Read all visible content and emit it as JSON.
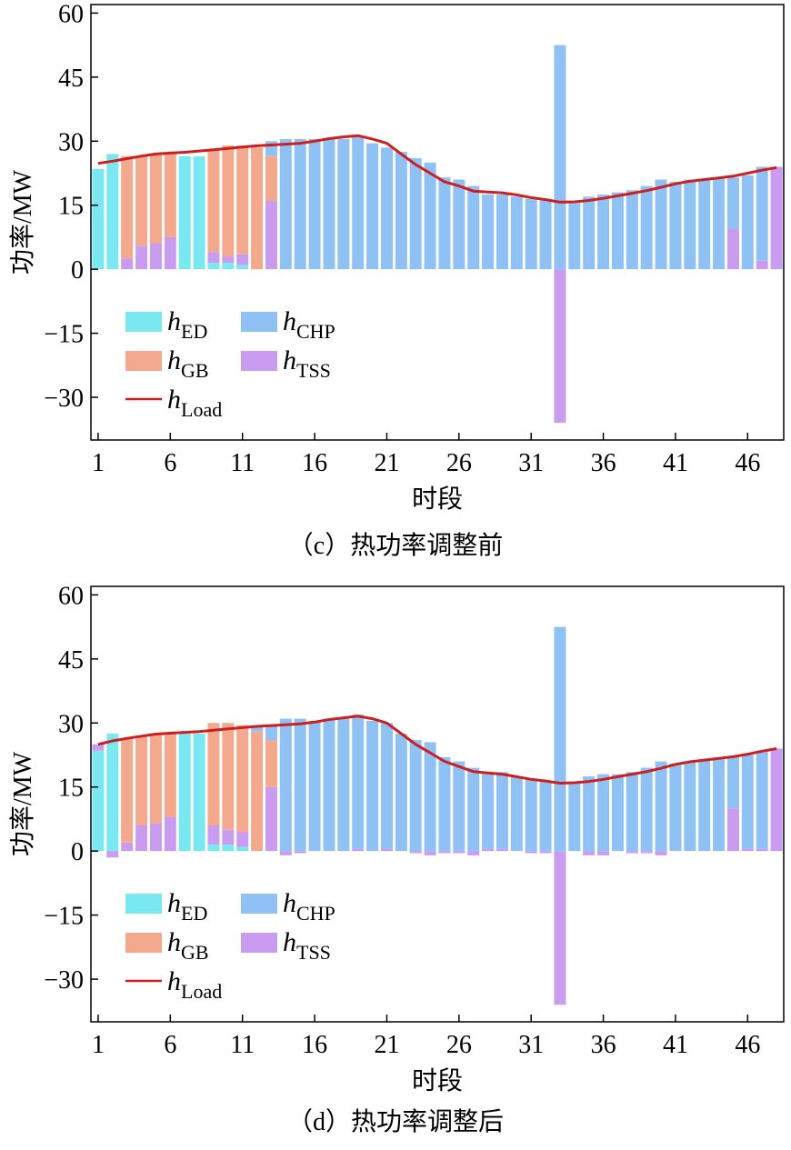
{
  "chart_data": [
    {
      "type": "bar",
      "caption": "（c）热功率调整前",
      "xlabel": "时段",
      "ylabel": "功率/MW",
      "x_ticks": [
        1,
        6,
        11,
        16,
        21,
        26,
        31,
        36,
        41,
        46
      ],
      "y_ticks": [
        60,
        45,
        30,
        15,
        0,
        -15,
        -30
      ],
      "ylim": [
        -40,
        62
      ],
      "xlim": [
        0.5,
        48.5
      ],
      "stacked": true,
      "legend": {
        "placement": "lower-left",
        "columns": 2
      },
      "colors": {
        "hED": "#7ae8f0",
        "hGB": "#f2a98e",
        "hCHP": "#8fc1f5",
        "hTSS": "#c99cf0",
        "hLoad": "#cc1f1f"
      },
      "legend_labels": {
        "hED": {
          "main": "h",
          "sub": "ED"
        },
        "hGB": {
          "main": "h",
          "sub": "GB"
        },
        "hCHP": {
          "main": "h",
          "sub": "CHP"
        },
        "hTSS": {
          "main": "h",
          "sub": "TSS"
        },
        "hLoad": {
          "main": "h",
          "sub": "Load"
        }
      },
      "series": [
        {
          "key": "hED",
          "values": [
            23.5,
            27,
            0,
            0,
            0,
            0,
            26.5,
            26.5,
            1.5,
            1.5,
            1,
            0,
            0,
            0,
            0,
            0,
            0,
            0,
            0,
            0,
            0,
            0,
            0,
            0,
            0,
            0,
            0,
            0,
            0,
            0,
            0,
            0,
            0,
            0,
            0,
            0,
            0,
            0,
            0,
            0,
            0,
            0,
            0,
            0,
            0,
            0,
            0,
            0
          ]
        },
        {
          "key": "hTSS",
          "values": [
            0,
            0,
            2.5,
            5.5,
            6,
            7.5,
            0,
            0,
            2.5,
            1.5,
            2.5,
            0,
            16,
            0,
            0,
            0,
            0,
            0,
            0,
            0,
            0,
            0,
            0,
            0,
            0,
            0,
            0,
            0,
            0,
            0,
            0,
            0,
            -36,
            0,
            0,
            0,
            0,
            0,
            0,
            0,
            0,
            0,
            0,
            0,
            9.5,
            0,
            2,
            24
          ]
        },
        {
          "key": "hGB",
          "values": [
            0,
            0,
            24,
            21,
            21,
            19.5,
            0,
            0,
            24,
            26,
            25.5,
            28.5,
            10.5,
            0,
            0,
            0,
            0,
            0,
            0,
            0,
            0,
            0,
            0,
            0,
            0,
            0,
            0,
            0,
            0,
            0,
            0,
            0,
            0,
            0,
            0,
            0,
            0,
            0,
            0,
            0,
            0,
            0,
            0,
            0,
            0,
            0,
            0,
            0
          ]
        },
        {
          "key": "hCHP",
          "values": [
            0,
            0,
            0,
            0,
            0,
            0,
            0,
            0,
            0,
            0,
            0,
            0,
            3.5,
            30.5,
            30.5,
            30.5,
            30.5,
            30.5,
            31,
            29.5,
            28.5,
            27.5,
            26,
            25,
            21.5,
            21,
            19.5,
            17.5,
            17.5,
            17,
            16.5,
            16.5,
            52.5,
            15.5,
            17,
            17.5,
            18,
            18.5,
            19.5,
            21,
            20.5,
            21,
            21,
            21.5,
            12,
            22,
            22,
            0
          ]
        }
      ],
      "load": [
        24.8,
        25.3,
        25.9,
        26.5,
        27,
        27.2,
        27.4,
        27.7,
        28,
        28.3,
        28.6,
        28.9,
        29.1,
        29.3,
        29.5,
        30,
        30.6,
        31,
        31.3,
        30.5,
        29.5,
        27,
        24.5,
        22.5,
        20.5,
        19.5,
        18.3,
        18.1,
        17.9,
        17.4,
        16.8,
        16.3,
        15.7,
        15.8,
        16.1,
        16.6,
        17.2,
        17.8,
        18.4,
        19.2,
        20,
        20.6,
        21,
        21.4,
        21.8,
        22.5,
        23.2,
        23.8
      ]
    },
    {
      "type": "bar",
      "caption": "（d）热功率调整后",
      "xlabel": "时段",
      "ylabel": "功率/MW",
      "x_ticks": [
        1,
        6,
        11,
        16,
        21,
        26,
        31,
        36,
        41,
        46
      ],
      "y_ticks": [
        60,
        45,
        30,
        15,
        0,
        -15,
        -30
      ],
      "ylim": [
        -40,
        62
      ],
      "xlim": [
        0.5,
        48.5
      ],
      "stacked": true,
      "legend": {
        "placement": "lower-left",
        "columns": 2
      },
      "colors": {
        "hED": "#7ae8f0",
        "hGB": "#f2a98e",
        "hCHP": "#8fc1f5",
        "hTSS": "#c99cf0",
        "hLoad": "#cc1f1f"
      },
      "legend_labels": {
        "hED": {
          "main": "h",
          "sub": "ED"
        },
        "hGB": {
          "main": "h",
          "sub": "GB"
        },
        "hCHP": {
          "main": "h",
          "sub": "CHP"
        },
        "hTSS": {
          "main": "h",
          "sub": "TSS"
        },
        "hLoad": {
          "main": "h",
          "sub": "Load"
        }
      },
      "series": [
        {
          "key": "hED",
          "values": [
            23.5,
            27.5,
            0,
            0,
            0,
            0,
            27.5,
            27.5,
            1.5,
            1.5,
            1,
            0,
            0,
            0,
            0,
            0,
            0,
            0,
            0,
            0,
            0,
            0,
            0,
            0,
            0,
            0,
            0,
            0,
            0,
            0,
            0,
            0,
            0,
            0,
            0,
            0,
            0,
            0,
            0,
            0,
            0,
            0,
            0,
            0,
            0,
            0,
            0,
            0
          ]
        },
        {
          "key": "hTSS",
          "values": [
            1.5,
            -1.5,
            2,
            6,
            6.5,
            8,
            0,
            0,
            4.5,
            3.5,
            3.5,
            0,
            15,
            -1,
            -0.5,
            0,
            0,
            0,
            0.5,
            0,
            0.5,
            0,
            -0.5,
            -1,
            -0.5,
            -0.5,
            -1,
            0.5,
            0.5,
            0,
            -0.5,
            -0.5,
            -36,
            0,
            -1,
            -1,
            0,
            -0.5,
            -0.5,
            -1,
            0,
            0,
            0,
            0,
            10,
            0.5,
            0.5,
            24
          ]
        },
        {
          "key": "hGB",
          "values": [
            0,
            0,
            24.5,
            21,
            21,
            19.5,
            0,
            0,
            24,
            25,
            25,
            28,
            11,
            0,
            0,
            0,
            0,
            0,
            0,
            0,
            0,
            0,
            0,
            0,
            0,
            0,
            0,
            0,
            0,
            0,
            0,
            0,
            0,
            0,
            0,
            0,
            0,
            0,
            0,
            0,
            0,
            0,
            0,
            0,
            0,
            0,
            0,
            0
          ]
        },
        {
          "key": "hCHP",
          "values": [
            0,
            0,
            0,
            0,
            0,
            0,
            0,
            0,
            0,
            0,
            0,
            1.5,
            3.5,
            31,
            31,
            30.5,
            31,
            31,
            31.5,
            30.5,
            29.5,
            27.5,
            26,
            25.5,
            22,
            21,
            19.5,
            18,
            18,
            17.5,
            17,
            16.5,
            52.5,
            16,
            17.5,
            18,
            18,
            18.5,
            19.5,
            21,
            20.5,
            21,
            21.5,
            21.5,
            12,
            22,
            23,
            0
          ]
        }
      ],
      "load": [
        25,
        25.8,
        26.4,
        26.9,
        27.4,
        27.6,
        27.8,
        28,
        28.3,
        28.6,
        28.9,
        29.2,
        29.4,
        29.6,
        29.8,
        30.2,
        30.8,
        31.2,
        31.6,
        31,
        30,
        27.5,
        25,
        23,
        21,
        19.8,
        18.6,
        18.3,
        18,
        17.4,
        16.8,
        16.4,
        15.9,
        16,
        16.3,
        16.8,
        17.4,
        18,
        18.6,
        19.4,
        20.3,
        20.9,
        21.3,
        21.7,
        22.1,
        22.7,
        23.4,
        24
      ]
    }
  ]
}
